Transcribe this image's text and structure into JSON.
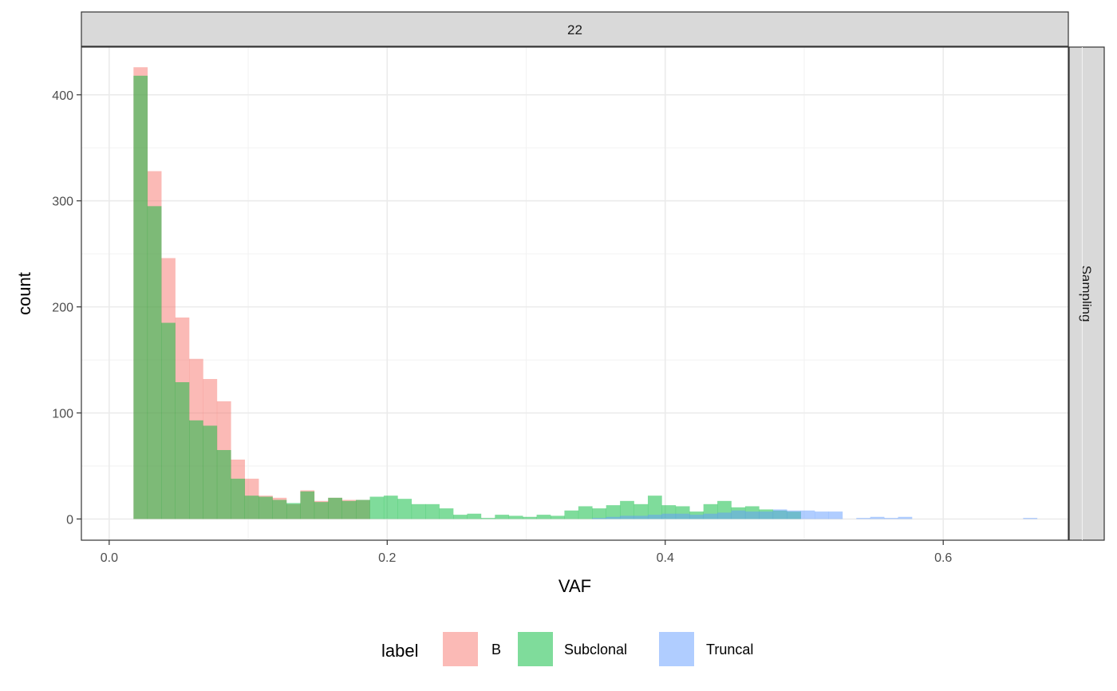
{
  "chart_data": {
    "type": "histogram",
    "facet_top": "22",
    "facet_right": "Sampling",
    "xlabel": "VAF",
    "ylabel": "count",
    "xlim": [
      -0.02,
      0.69
    ],
    "ylim": [
      -20,
      445
    ],
    "x_ticks": [
      0.0,
      0.2,
      0.4,
      0.6
    ],
    "x_tick_labels": [
      "0.0",
      "0.2",
      "0.4",
      "0.6"
    ],
    "y_ticks": [
      0,
      100,
      200,
      300,
      400
    ],
    "y_tick_labels": [
      "0",
      "100",
      "200",
      "300",
      "400"
    ],
    "grid": true,
    "legend_position": "bottom",
    "legend_title": "label",
    "bins": {
      "start": 0.0175,
      "width": 0.01
    },
    "series": [
      {
        "name": "B",
        "color": "#F8766D",
        "values": [
          426,
          328,
          246,
          190,
          151,
          132,
          111,
          56,
          38,
          22,
          20,
          14,
          27,
          17,
          20,
          18,
          18
        ]
      },
      {
        "name": "Subclonal",
        "color": "#00BA38",
        "values": [
          418,
          295,
          185,
          129,
          93,
          88,
          65,
          38,
          22,
          21,
          18,
          15,
          26,
          16,
          20,
          17,
          18,
          21,
          22,
          19,
          14,
          14,
          10,
          4,
          5,
          1,
          4,
          3,
          2,
          4,
          3,
          8,
          12,
          10,
          13,
          17,
          14,
          22,
          13,
          12,
          7,
          14,
          17,
          11,
          12,
          9,
          8,
          7,
          0,
          0,
          0,
          0,
          0,
          0,
          0,
          0,
          0,
          0,
          0,
          0,
          0,
          0,
          0,
          0,
          0
        ]
      },
      {
        "name": "Truncal",
        "color": "#619CFF",
        "values": [
          0,
          0,
          0,
          0,
          0,
          0,
          0,
          0,
          0,
          0,
          0,
          0,
          0,
          0,
          0,
          0,
          0,
          0,
          0,
          0,
          0,
          0,
          0,
          0,
          0,
          0,
          0,
          0,
          0,
          0,
          0,
          0,
          0,
          1,
          2,
          3,
          3,
          4,
          5,
          5,
          4,
          5,
          6,
          8,
          7,
          7,
          9,
          8,
          8,
          7,
          7,
          0,
          1,
          2,
          1,
          2,
          0,
          0,
          0,
          0,
          0,
          0,
          0,
          0,
          1
        ]
      }
    ]
  }
}
